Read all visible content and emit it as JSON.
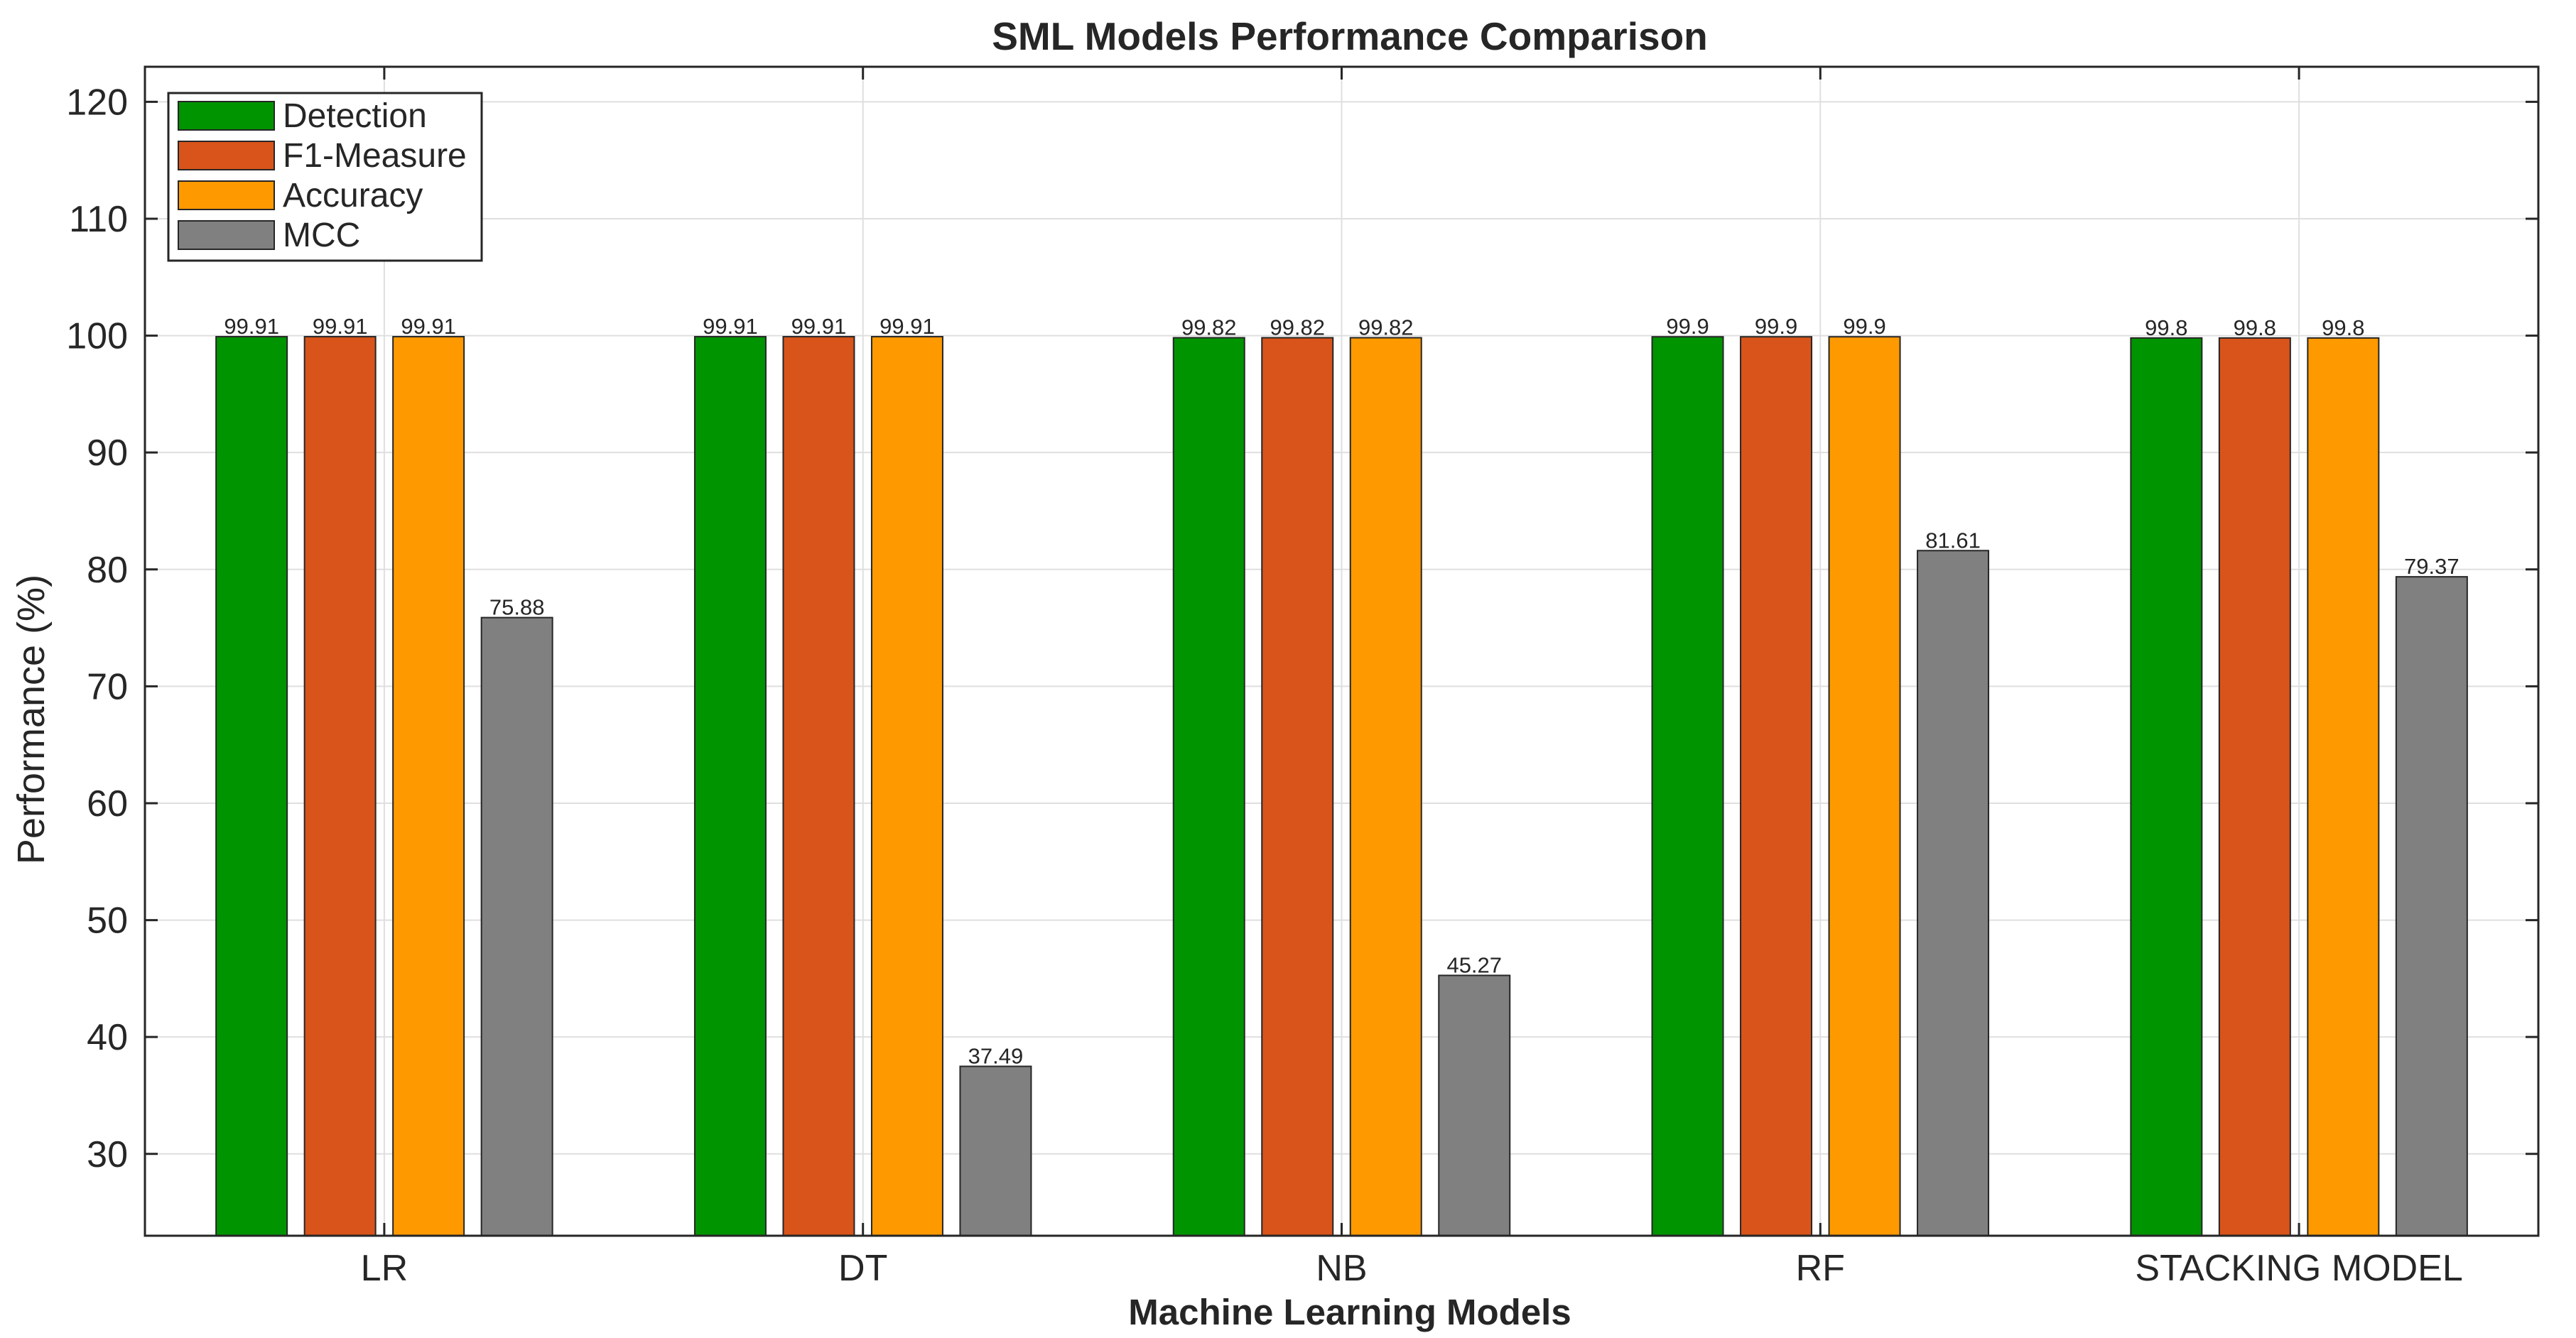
{
  "chart_data": {
    "type": "bar",
    "title": "SML Models Performance Comparison",
    "xlabel": "Machine Learning Models",
    "ylabel": "Performance (%)",
    "categories": [
      "LR",
      "DT",
      "NB",
      "RF",
      "STACKING MODEL"
    ],
    "series": [
      {
        "name": "Detection",
        "color": "#009400",
        "values": [
          99.91,
          99.91,
          99.82,
          99.9,
          99.8
        ],
        "labels": [
          "99.91",
          "99.91",
          "99.82",
          "99.9",
          "99.8"
        ]
      },
      {
        "name": "F1-Measure",
        "color": "#d9541a",
        "values": [
          99.91,
          99.91,
          99.82,
          99.9,
          99.8
        ],
        "labels": [
          "99.91",
          "99.91",
          "99.82",
          "99.9",
          "99.8"
        ]
      },
      {
        "name": "Accuracy",
        "color": "#ff9900",
        "values": [
          99.91,
          99.91,
          99.82,
          99.9,
          99.8
        ],
        "labels": [
          "99.91",
          "99.91",
          "99.82",
          "99.9",
          "99.8"
        ]
      },
      {
        "name": "MCC",
        "color": "#808080",
        "values": [
          75.88,
          37.49,
          45.27,
          81.61,
          79.37
        ],
        "labels": [
          "75.88",
          "37.49",
          "45.27",
          "81.61",
          "79.37"
        ]
      }
    ],
    "ylim": [
      23,
      123
    ],
    "yticks": [
      30,
      40,
      50,
      60,
      70,
      80,
      90,
      100,
      110,
      120
    ],
    "grid": true,
    "legend_position": "top-left"
  }
}
